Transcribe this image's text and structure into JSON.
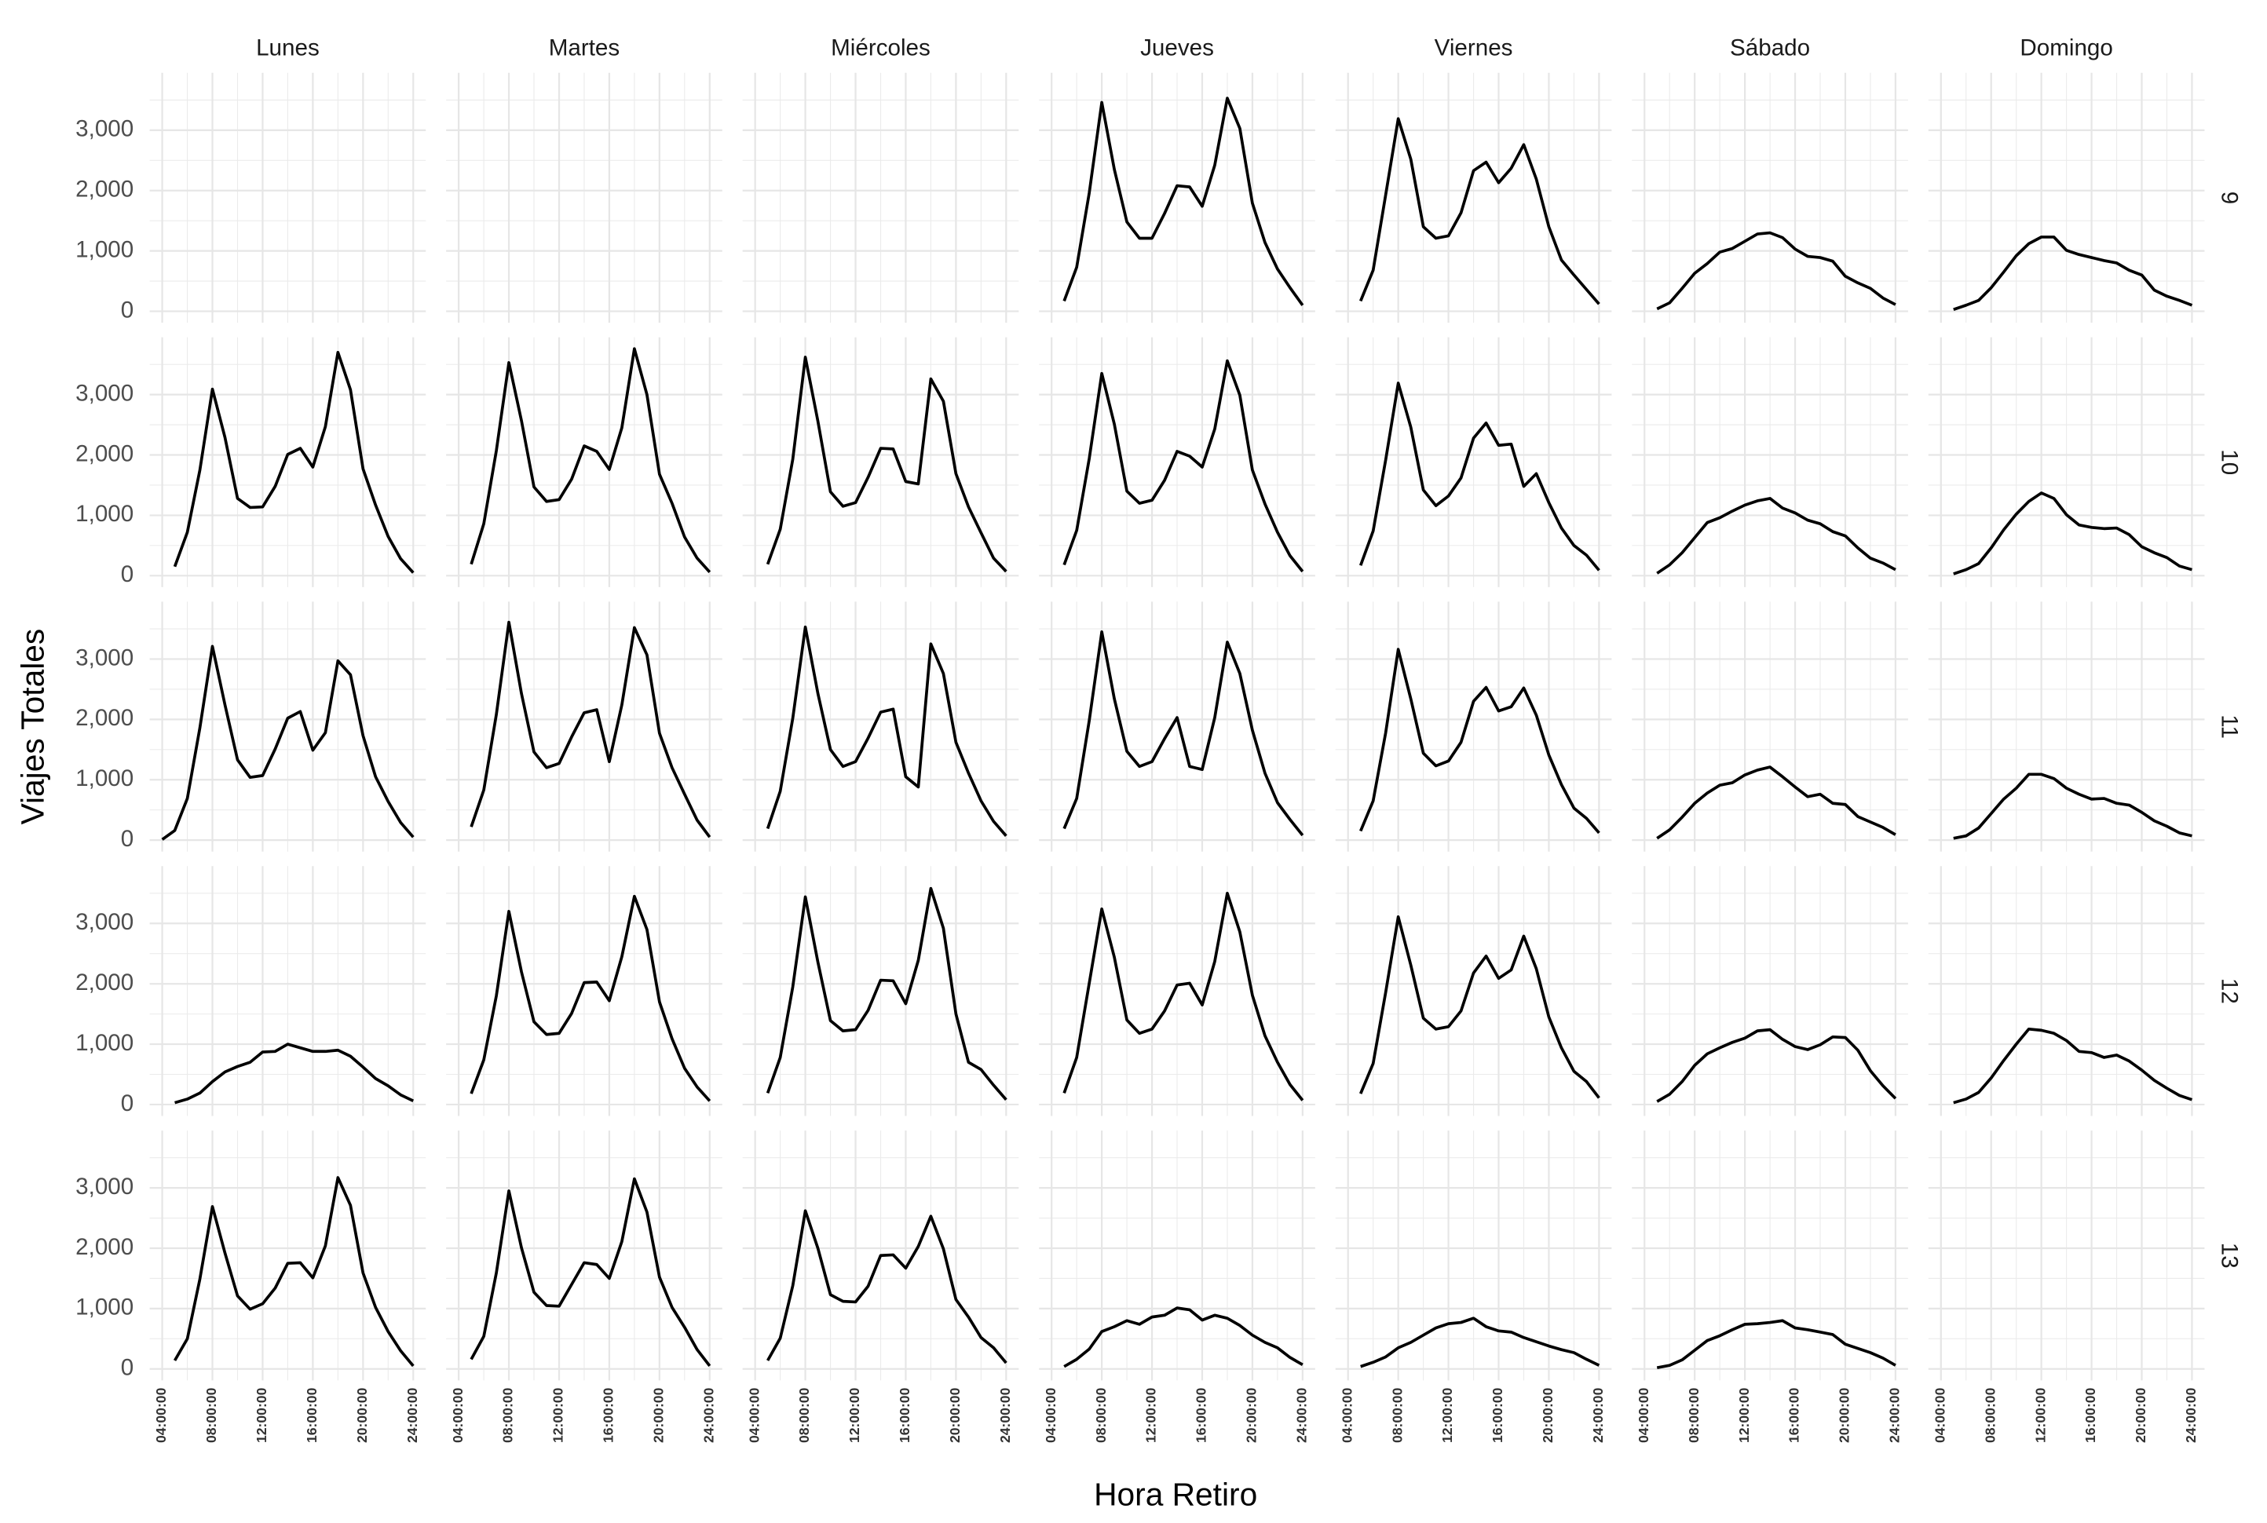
{
  "chart_data": {
    "type": "line",
    "xlabel": "Hora Retiro",
    "ylabel": "Viajes Totales",
    "columns": [
      "Lunes",
      "Martes",
      "Miércoles",
      "Jueves",
      "Viernes",
      "Sábado",
      "Domingo"
    ],
    "rows": [
      "9",
      "10",
      "11",
      "12",
      "13"
    ],
    "color": "#000000",
    "grid": true,
    "x": [
      4,
      5,
      6,
      7,
      8,
      9,
      10,
      11,
      12,
      13,
      14,
      15,
      16,
      17,
      18,
      19,
      20,
      21,
      22,
      23,
      24
    ],
    "xlim": [
      3,
      25
    ],
    "xticks": [
      {
        "value": 4,
        "label": "04:00:00"
      },
      {
        "value": 8,
        "label": "08:00:00"
      },
      {
        "value": 12,
        "label": "12:00:00"
      },
      {
        "value": 16,
        "label": "16:00:00"
      },
      {
        "value": 20,
        "label": "20:00:00"
      },
      {
        "value": 24,
        "label": "24:00:00"
      }
    ],
    "x_minor_ticks": [
      6,
      10,
      14,
      18,
      22
    ],
    "ylim": [
      -190,
      3950
    ],
    "yticks": [
      0,
      {
        "value": 1000,
        "label": "1,000"
      },
      {
        "value": 2000,
        "label": "2,000"
      },
      {
        "value": 3000,
        "label": "3,000"
      }
    ],
    "y_minor_ticks": [
      500,
      1500,
      2500,
      3500
    ],
    "panels": [
      [
        [
          null,
          null,
          null,
          null,
          null,
          null,
          null,
          null,
          null,
          null,
          null,
          null,
          null,
          null,
          null,
          null,
          null,
          null,
          null,
          null,
          null
        ],
        [
          null,
          null,
          null,
          null,
          null,
          null,
          null,
          null,
          null,
          null,
          null,
          null,
          null,
          null,
          null,
          null,
          null,
          null,
          null,
          null,
          null
        ],
        [
          null,
          null,
          null,
          null,
          null,
          null,
          null,
          null,
          null,
          null,
          null,
          null,
          null,
          null,
          null,
          null,
          null,
          null,
          null,
          null,
          null
        ],
        [
          null,
          170,
          730,
          1960,
          3460,
          2350,
          1480,
          1210,
          1210,
          1620,
          2080,
          2060,
          1740,
          2420,
          3530,
          3030,
          1790,
          1140,
          700,
          390,
          100
        ],
        [
          null,
          170,
          680,
          1930,
          3190,
          2520,
          1400,
          1210,
          1250,
          1630,
          2330,
          2470,
          2130,
          2370,
          2760,
          2190,
          1400,
          850,
          600,
          360,
          120
        ],
        [
          null,
          40,
          140,
          380,
          630,
          790,
          980,
          1040,
          1160,
          1280,
          1300,
          1220,
          1030,
          910,
          890,
          830,
          580,
          470,
          380,
          220,
          110
        ],
        [
          null,
          30,
          100,
          180,
          390,
          650,
          920,
          1120,
          1230,
          1230,
          1010,
          940,
          890,
          840,
          800,
          680,
          600,
          350,
          250,
          180,
          100
        ]
      ],
      [
        [
          null,
          150,
          720,
          1750,
          3090,
          2290,
          1280,
          1130,
          1140,
          1480,
          2010,
          2110,
          1800,
          2470,
          3700,
          3080,
          1770,
          1170,
          650,
          280,
          50
        ],
        [
          null,
          190,
          860,
          2070,
          3530,
          2570,
          1470,
          1230,
          1260,
          1600,
          2150,
          2060,
          1760,
          2450,
          3760,
          3000,
          1680,
          1200,
          640,
          290,
          60
        ],
        [
          null,
          190,
          770,
          1930,
          3620,
          2560,
          1390,
          1150,
          1210,
          1630,
          2110,
          2100,
          1560,
          1520,
          3260,
          2890,
          1690,
          1140,
          710,
          290,
          70
        ],
        [
          null,
          180,
          750,
          1940,
          3350,
          2510,
          1400,
          1200,
          1250,
          1580,
          2060,
          1980,
          1800,
          2430,
          3560,
          2990,
          1750,
          1190,
          720,
          330,
          70
        ],
        [
          null,
          170,
          740,
          1920,
          3190,
          2460,
          1420,
          1160,
          1320,
          1620,
          2280,
          2530,
          2160,
          2180,
          1480,
          1690,
          1210,
          790,
          500,
          340,
          90
        ],
        [
          null,
          40,
          180,
          380,
          630,
          880,
          960,
          1070,
          1170,
          1240,
          1280,
          1120,
          1040,
          920,
          860,
          730,
          660,
          460,
          290,
          210,
          100
        ],
        [
          null,
          30,
          100,
          200,
          460,
          760,
          1020,
          1230,
          1370,
          1280,
          1010,
          840,
          800,
          780,
          790,
          680,
          480,
          380,
          300,
          160,
          100
        ]
      ],
      [
        [
          10,
          160,
          690,
          1860,
          3210,
          2240,
          1330,
          1040,
          1070,
          1510,
          2020,
          2130,
          1490,
          1780,
          2970,
          2740,
          1730,
          1050,
          640,
          290,
          50
        ],
        [
          null,
          220,
          830,
          2080,
          3610,
          2430,
          1460,
          1200,
          1270,
          1710,
          2110,
          2160,
          1300,
          2240,
          3520,
          3070,
          1770,
          1200,
          760,
          330,
          50
        ],
        [
          null,
          190,
          810,
          2020,
          3530,
          2430,
          1500,
          1220,
          1300,
          1690,
          2120,
          2170,
          1050,
          880,
          3250,
          2760,
          1620,
          1110,
          650,
          310,
          70
        ],
        [
          null,
          190,
          690,
          1980,
          3450,
          2340,
          1470,
          1220,
          1300,
          1680,
          2030,
          1220,
          1170,
          2030,
          3280,
          2760,
          1820,
          1110,
          620,
          340,
          80
        ],
        [
          null,
          150,
          650,
          1780,
          3160,
          2340,
          1440,
          1230,
          1310,
          1620,
          2300,
          2530,
          2140,
          2210,
          2520,
          2070,
          1410,
          920,
          530,
          360,
          120
        ],
        [
          null,
          30,
          170,
          380,
          610,
          780,
          910,
          950,
          1080,
          1160,
          1210,
          1050,
          880,
          720,
          760,
          610,
          590,
          390,
          300,
          210,
          90
        ],
        [
          null,
          30,
          70,
          200,
          440,
          680,
          860,
          1090,
          1090,
          1020,
          860,
          760,
          680,
          690,
          610,
          580,
          460,
          320,
          230,
          120,
          70
        ]
      ],
      [
        [
          null,
          30,
          90,
          190,
          380,
          540,
          630,
          700,
          870,
          880,
          1000,
          940,
          880,
          880,
          900,
          800,
          620,
          430,
          310,
          160,
          60
        ],
        [
          null,
          180,
          740,
          1800,
          3200,
          2200,
          1370,
          1160,
          1180,
          1510,
          2020,
          2030,
          1720,
          2450,
          3450,
          2900,
          1700,
          1090,
          600,
          290,
          60
        ],
        [
          null,
          190,
          780,
          1950,
          3440,
          2360,
          1390,
          1220,
          1240,
          1560,
          2060,
          2050,
          1670,
          2390,
          3580,
          2920,
          1500,
          700,
          580,
          320,
          80
        ],
        [
          null,
          190,
          780,
          2010,
          3240,
          2440,
          1400,
          1180,
          1250,
          1550,
          1980,
          2010,
          1650,
          2370,
          3500,
          2860,
          1810,
          1140,
          700,
          330,
          70
        ],
        [
          null,
          180,
          680,
          1860,
          3110,
          2310,
          1430,
          1250,
          1290,
          1550,
          2180,
          2460,
          2090,
          2230,
          2790,
          2250,
          1450,
          940,
          550,
          380,
          110
        ],
        [
          null,
          50,
          170,
          380,
          650,
          840,
          940,
          1030,
          1100,
          1220,
          1240,
          1080,
          960,
          910,
          990,
          1120,
          1110,
          900,
          560,
          310,
          100
        ],
        [
          null,
          30,
          90,
          200,
          440,
          730,
          1000,
          1250,
          1230,
          1180,
          1060,
          880,
          860,
          780,
          820,
          720,
          570,
          400,
          270,
          150,
          80
        ]
      ],
      [
        [
          null,
          140,
          500,
          1490,
          2690,
          1920,
          1210,
          990,
          1080,
          1340,
          1750,
          1760,
          1510,
          2040,
          3170,
          2710,
          1590,
          1020,
          620,
          300,
          50
        ],
        [
          null,
          160,
          540,
          1590,
          2950,
          2010,
          1270,
          1050,
          1040,
          1400,
          1760,
          1730,
          1500,
          2110,
          3150,
          2600,
          1520,
          1020,
          690,
          320,
          50
        ],
        [
          null,
          140,
          510,
          1380,
          2620,
          2000,
          1230,
          1120,
          1110,
          1370,
          1880,
          1890,
          1670,
          2030,
          2530,
          1990,
          1150,
          860,
          520,
          350,
          100
        ],
        [
          null,
          40,
          160,
          330,
          620,
          700,
          800,
          740,
          860,
          890,
          1010,
          980,
          810,
          890,
          840,
          720,
          560,
          440,
          350,
          190,
          70
        ],
        [
          null,
          40,
          110,
          200,
          350,
          440,
          560,
          680,
          750,
          770,
          840,
          700,
          630,
          610,
          520,
          450,
          380,
          320,
          270,
          160,
          60
        ],
        [
          null,
          20,
          60,
          150,
          310,
          470,
          550,
          650,
          740,
          750,
          770,
          800,
          680,
          650,
          610,
          570,
          410,
          340,
          270,
          180,
          60
        ],
        [
          null,
          null,
          null,
          null,
          null,
          null,
          null,
          null,
          null,
          null,
          null,
          null,
          null,
          null,
          null,
          null,
          null,
          null,
          null,
          null,
          null
        ]
      ]
    ]
  }
}
